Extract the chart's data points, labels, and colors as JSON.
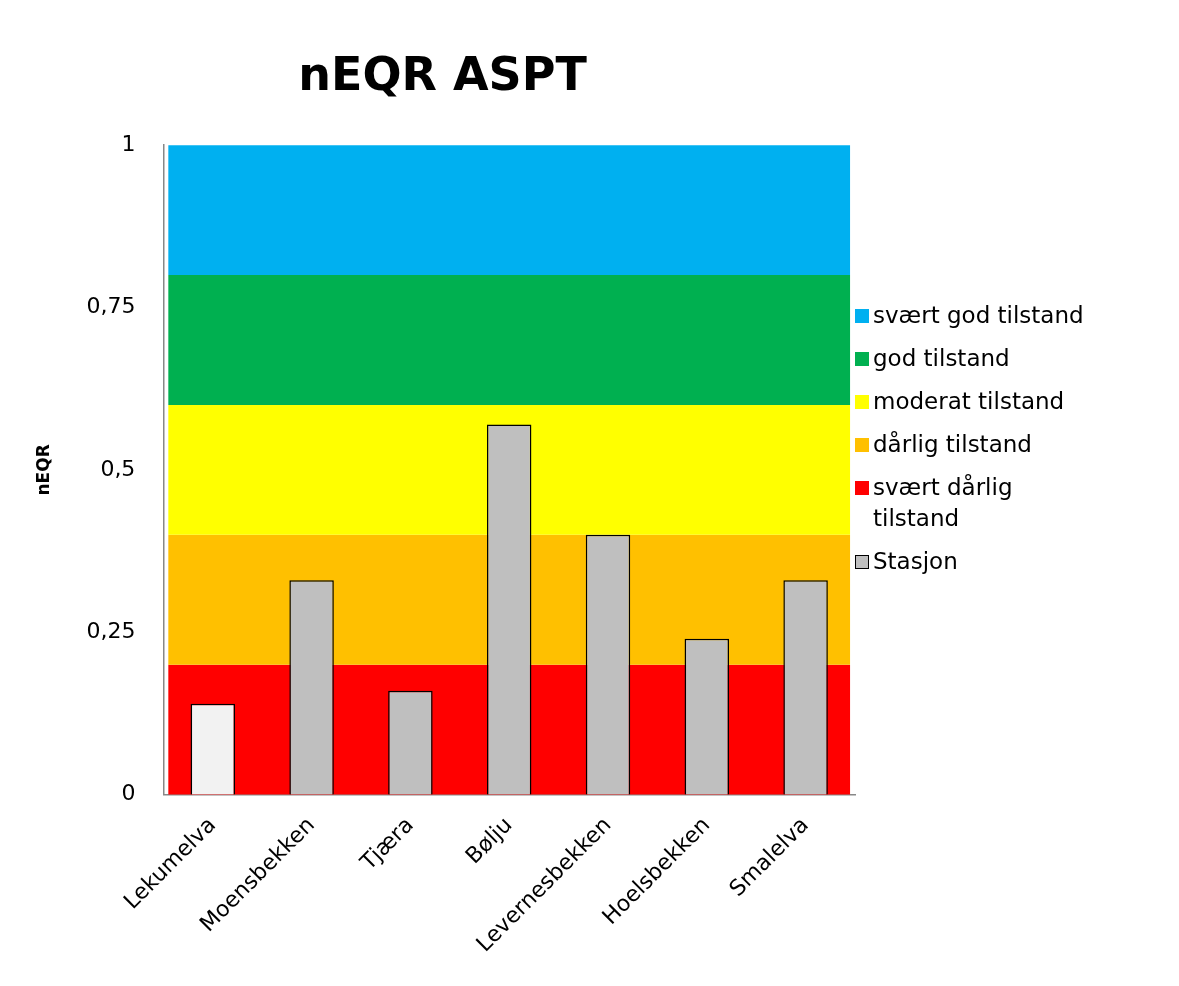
{
  "chart_data": {
    "type": "bar",
    "title": "nEQR ASPT",
    "ylabel": "nEQR",
    "categories": [
      "Lekumelva",
      "Moensbekken",
      "Tjæra",
      "Bølju",
      "Levernesbekken",
      "Hoelsbekken",
      "Smalelva"
    ],
    "series": [
      {
        "name": "Stasjon",
        "color": "#bfbfbf",
        "colors": [
          "#f2f2f2",
          "#bfbfbf",
          "#bfbfbf",
          "#bfbfbf",
          "#bfbfbf",
          "#bfbfbf",
          "#bfbfbf"
        ],
        "values": [
          0.14,
          0.33,
          0.16,
          0.57,
          0.4,
          0.24,
          0.33
        ]
      }
    ],
    "ylim": [
      0,
      1
    ],
    "yticks": [
      0,
      {
        "value": 0.25,
        "label": "0,25"
      },
      {
        "value": 0.5,
        "label": "0,5"
      },
      {
        "value": 0.75,
        "label": "0,75"
      },
      1
    ],
    "bands": [
      {
        "axis": "y",
        "from": 0,
        "to": 0.2,
        "label": "svært dårlig tilstand",
        "color": "#ff0000"
      },
      {
        "axis": "y",
        "from": 0.2,
        "to": 0.4,
        "label": "dårlig tilstand",
        "color": "#ffc000"
      },
      {
        "axis": "y",
        "from": 0.4,
        "to": 0.6,
        "label": "moderat tilstand",
        "color": "#ffff00"
      },
      {
        "axis": "y",
        "from": 0.6,
        "to": 0.8,
        "label": "god tilstand",
        "color": "#00b050"
      },
      {
        "axis": "y",
        "from": 0.8,
        "to": 1,
        "label": "svært god tilstand",
        "color": "#00b0f0"
      }
    ],
    "grid": false,
    "legend": "right"
  }
}
